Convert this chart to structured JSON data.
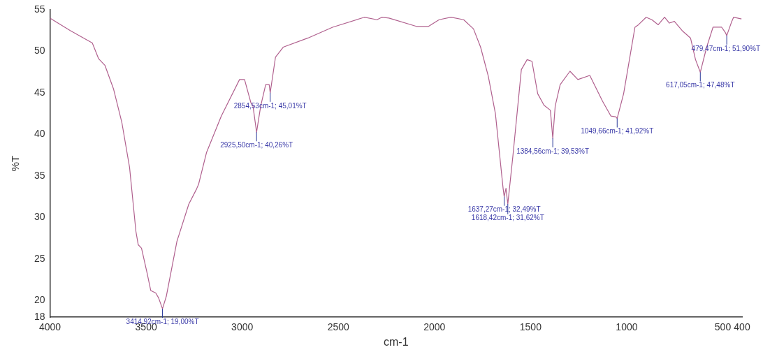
{
  "chart_data": {
    "type": "line",
    "xlabel": "cm-1",
    "ylabel": "%T",
    "xlim": [
      4000,
      400
    ],
    "ylim": [
      18,
      55
    ],
    "xticks": [
      4000,
      3500,
      3000,
      2500,
      2000,
      1500,
      1000,
      500,
      400
    ],
    "yticks": [
      18,
      20,
      25,
      30,
      35,
      40,
      45,
      50,
      55
    ],
    "grid": false,
    "legend": false,
    "marker": "none",
    "line_style": "solid",
    "series": [
      {
        "color": "#b0608e",
        "x": [
          4000,
          3895,
          3780,
          3747,
          3714,
          3670,
          3626,
          3586,
          3553,
          3541,
          3524,
          3495,
          3476,
          3450,
          3435,
          3414.92,
          3395,
          3340,
          3278,
          3238,
          3227,
          3186,
          3109,
          3014,
          2988,
          2955,
          2944,
          2925.5,
          2904,
          2878,
          2860,
          2854.53,
          2827,
          2787,
          2658,
          2530,
          2365,
          2299,
          2274,
          2237,
          2094,
          2031,
          1976,
          1914,
          1848,
          1797,
          1760,
          1720,
          1683,
          1643,
          1637.27,
          1628,
          1618.42,
          1592,
          1548,
          1518,
          1493,
          1463,
          1430,
          1397,
          1384.56,
          1372,
          1346,
          1295,
          1254,
          1192,
          1126,
          1082,
          1056,
          1049.66,
          1016,
          957,
          939,
          899,
          869,
          836,
          803,
          778,
          752,
          712,
          668,
          642,
          617.05,
          584,
          551,
          506,
          488,
          479.47,
          455,
          444,
          403
        ],
        "values": [
          54.0,
          52.5,
          51.0,
          49.1,
          48.3,
          45.5,
          41.4,
          36.0,
          28.3,
          26.7,
          26.3,
          23.3,
          21.2,
          20.9,
          20.3,
          19.0,
          20.5,
          27.1,
          31.6,
          33.4,
          34.0,
          37.8,
          42.2,
          46.6,
          46.6,
          43.8,
          43.4,
          40.26,
          43.4,
          46.0,
          46.0,
          45.01,
          49.3,
          50.5,
          51.6,
          52.9,
          54.1,
          53.8,
          54.1,
          54.0,
          53.0,
          53.0,
          53.8,
          54.1,
          53.8,
          52.7,
          50.5,
          47.0,
          42.5,
          33.5,
          32.49,
          33.5,
          31.62,
          37.4,
          47.8,
          49.0,
          48.8,
          44.9,
          43.5,
          42.9,
          39.53,
          43.4,
          46.0,
          47.6,
          46.6,
          47.1,
          44.0,
          42.2,
          42.1,
          41.92,
          44.9,
          52.9,
          53.2,
          54.1,
          53.8,
          53.2,
          54.1,
          53.4,
          53.6,
          52.5,
          51.6,
          49.0,
          47.48,
          50.5,
          52.9,
          52.9,
          52.3,
          51.9,
          53.5,
          54.1,
          53.9
        ]
      }
    ],
    "annotations": [
      {
        "text": "3414,92cm-1; 19,00%T",
        "x": 3414.92,
        "y": 19.0
      },
      {
        "text": "2925,50cm-1; 40,26%T",
        "x": 2925.5,
        "y": 40.26
      },
      {
        "text": "2854,53cm-1; 45,01%T",
        "x": 2854.53,
        "y": 45.01
      },
      {
        "text": "1637,27cm-1; 32,49%T",
        "x": 1637.27,
        "y": 32.49
      },
      {
        "text": "1618,42cm-1; 31,62%T",
        "x": 1618.42,
        "y": 31.62
      },
      {
        "text": "1384,56cm-1; 39,53%T",
        "x": 1384.56,
        "y": 39.53
      },
      {
        "text": "1049,66cm-1; 41,92%T",
        "x": 1049.66,
        "y": 41.92
      },
      {
        "text": "617,05cm-1; 47,48%T",
        "x": 617.05,
        "y": 47.48
      },
      {
        "text": "479,47cm-1; 51,90%T",
        "x": 479.47,
        "y": 51.9
      }
    ]
  }
}
